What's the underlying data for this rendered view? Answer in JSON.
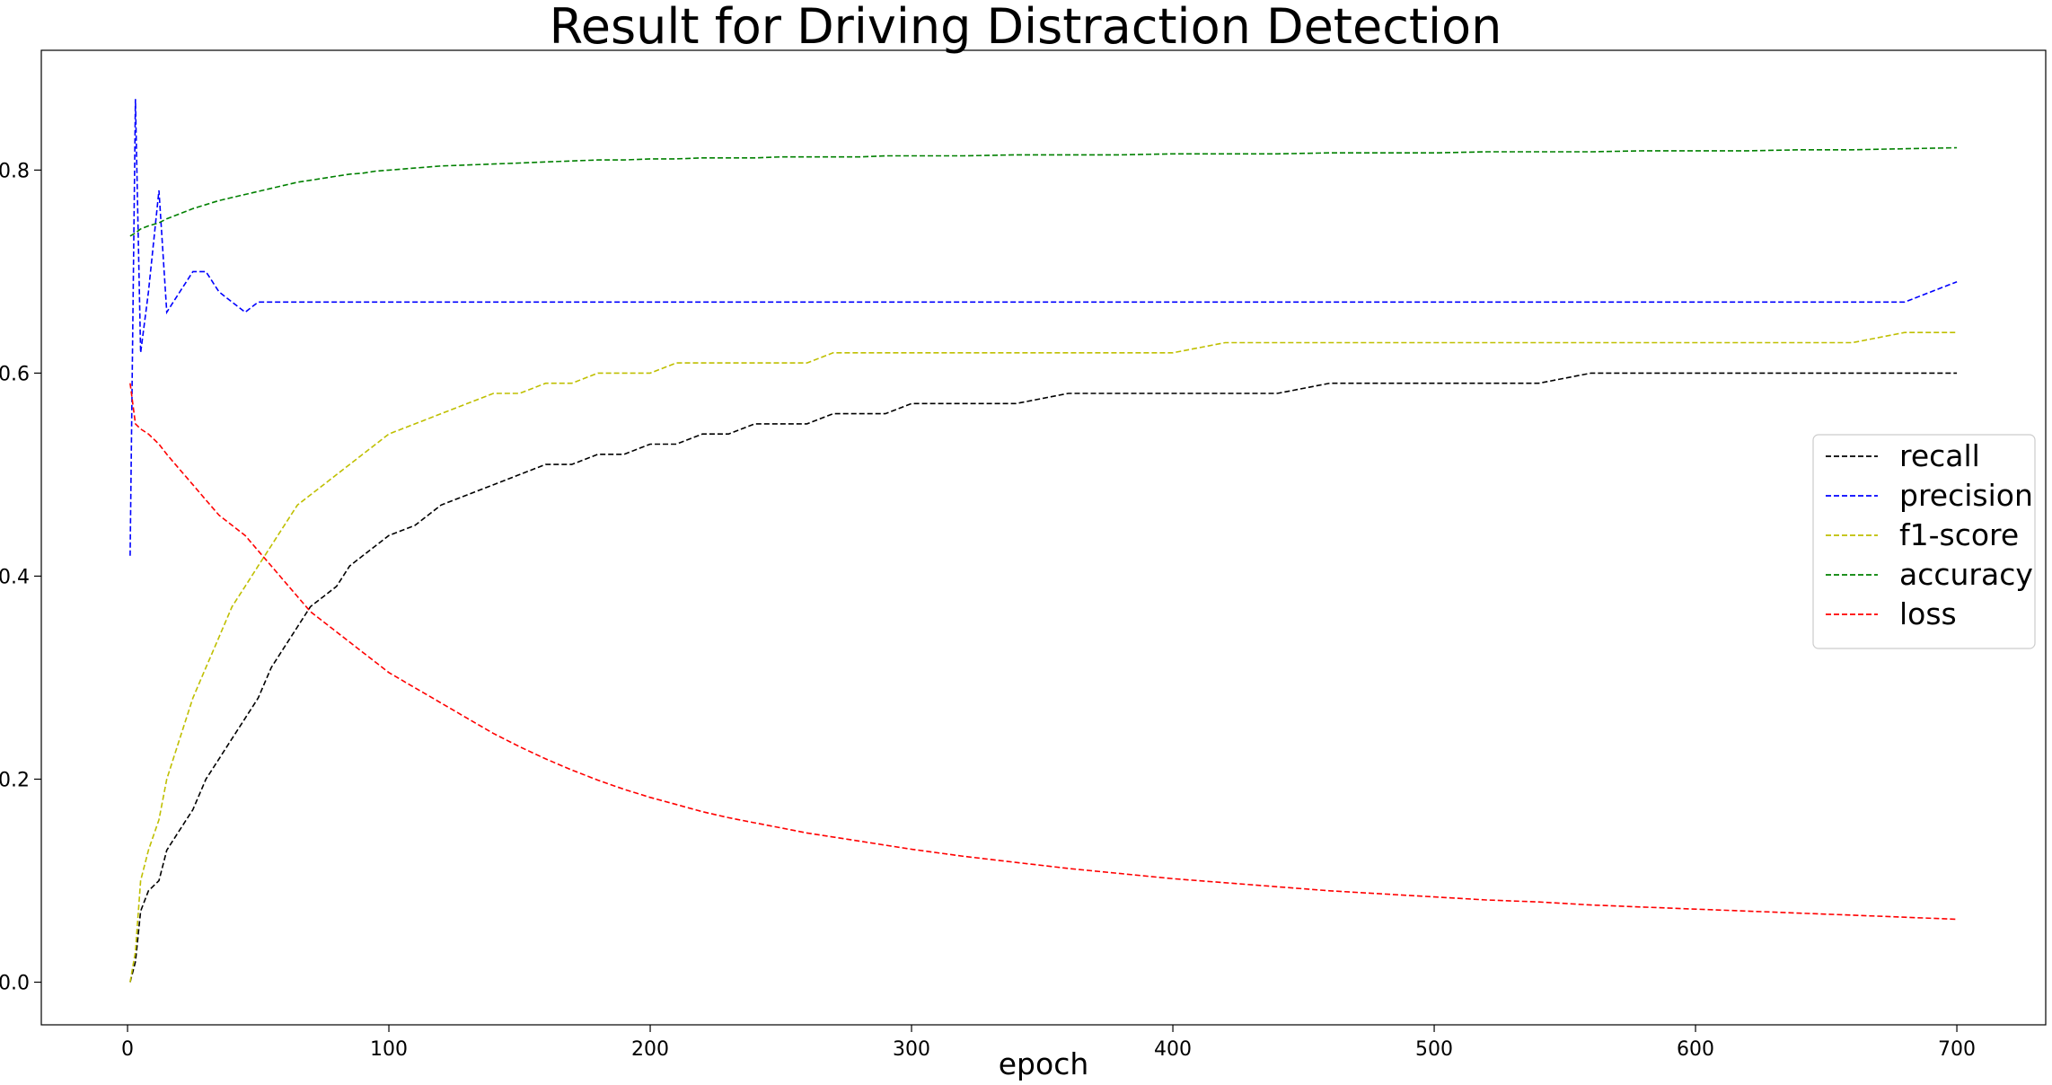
{
  "chart_data": {
    "type": "line",
    "title": "Result for Driving Distraction Detection",
    "xlabel": "epoch",
    "ylabel": "",
    "xlim": [
      -33,
      734
    ],
    "ylim": [
      -0.042,
      0.918
    ],
    "grid": false,
    "legend_position": "center-right",
    "x_ticks": [
      0,
      100,
      200,
      300,
      400,
      500,
      600,
      700
    ],
    "x_tick_labels": [
      "0",
      "100",
      "200",
      "300",
      "400",
      "500",
      "600",
      "700"
    ],
    "y_ticks": [
      0.0,
      0.2,
      0.4,
      0.6,
      0.8
    ],
    "y_tick_labels": [
      "0.0",
      "0.2",
      "0.4",
      "0.6",
      "0.8"
    ],
    "x": [
      1,
      3,
      5,
      8,
      12,
      15,
      20,
      25,
      30,
      35,
      40,
      45,
      50,
      55,
      60,
      65,
      70,
      75,
      80,
      85,
      90,
      95,
      100,
      110,
      120,
      130,
      140,
      150,
      160,
      170,
      180,
      190,
      200,
      210,
      220,
      230,
      240,
      250,
      260,
      270,
      280,
      290,
      300,
      320,
      340,
      360,
      380,
      400,
      420,
      440,
      460,
      480,
      500,
      520,
      540,
      560,
      580,
      600,
      620,
      640,
      660,
      680,
      700
    ],
    "series": [
      {
        "name": "recall",
        "color": "#000000",
        "values": [
          0.0,
          0.02,
          0.07,
          0.09,
          0.1,
          0.13,
          0.15,
          0.17,
          0.2,
          0.22,
          0.24,
          0.26,
          0.28,
          0.31,
          0.33,
          0.35,
          0.37,
          0.38,
          0.39,
          0.41,
          0.42,
          0.43,
          0.44,
          0.45,
          0.47,
          0.48,
          0.49,
          0.5,
          0.51,
          0.51,
          0.52,
          0.52,
          0.53,
          0.53,
          0.54,
          0.54,
          0.55,
          0.55,
          0.55,
          0.56,
          0.56,
          0.56,
          0.57,
          0.57,
          0.57,
          0.58,
          0.58,
          0.58,
          0.58,
          0.58,
          0.59,
          0.59,
          0.59,
          0.59,
          0.59,
          0.6,
          0.6,
          0.6,
          0.6,
          0.6,
          0.6,
          0.6,
          0.6
        ]
      },
      {
        "name": "precision",
        "color": "#0000ff",
        "values": [
          0.42,
          0.87,
          0.62,
          0.68,
          0.78,
          0.66,
          0.68,
          0.7,
          0.7,
          0.68,
          0.67,
          0.66,
          0.67,
          0.67,
          0.67,
          0.67,
          0.67,
          0.67,
          0.67,
          0.67,
          0.67,
          0.67,
          0.67,
          0.67,
          0.67,
          0.67,
          0.67,
          0.67,
          0.67,
          0.67,
          0.67,
          0.67,
          0.67,
          0.67,
          0.67,
          0.67,
          0.67,
          0.67,
          0.67,
          0.67,
          0.67,
          0.67,
          0.67,
          0.67,
          0.67,
          0.67,
          0.67,
          0.67,
          0.67,
          0.67,
          0.67,
          0.67,
          0.67,
          0.67,
          0.67,
          0.67,
          0.67,
          0.67,
          0.67,
          0.67,
          0.67,
          0.67,
          0.69
        ]
      },
      {
        "name": "f1-score",
        "color": "#bfbf00",
        "values": [
          0.0,
          0.03,
          0.1,
          0.13,
          0.16,
          0.2,
          0.24,
          0.28,
          0.31,
          0.34,
          0.37,
          0.39,
          0.41,
          0.43,
          0.45,
          0.47,
          0.48,
          0.49,
          0.5,
          0.51,
          0.52,
          0.53,
          0.54,
          0.55,
          0.56,
          0.57,
          0.58,
          0.58,
          0.59,
          0.59,
          0.6,
          0.6,
          0.6,
          0.61,
          0.61,
          0.61,
          0.61,
          0.61,
          0.61,
          0.62,
          0.62,
          0.62,
          0.62,
          0.62,
          0.62,
          0.62,
          0.62,
          0.62,
          0.63,
          0.63,
          0.63,
          0.63,
          0.63,
          0.63,
          0.63,
          0.63,
          0.63,
          0.63,
          0.63,
          0.63,
          0.63,
          0.64,
          0.64
        ]
      },
      {
        "name": "accuracy",
        "color": "#008000",
        "values": [
          0.735,
          0.738,
          0.742,
          0.745,
          0.748,
          0.752,
          0.757,
          0.762,
          0.766,
          0.77,
          0.773,
          0.776,
          0.779,
          0.782,
          0.785,
          0.788,
          0.79,
          0.792,
          0.794,
          0.796,
          0.797,
          0.799,
          0.8,
          0.802,
          0.804,
          0.805,
          0.806,
          0.807,
          0.808,
          0.809,
          0.81,
          0.81,
          0.811,
          0.811,
          0.812,
          0.812,
          0.812,
          0.813,
          0.813,
          0.813,
          0.813,
          0.814,
          0.814,
          0.814,
          0.815,
          0.815,
          0.815,
          0.816,
          0.816,
          0.816,
          0.817,
          0.817,
          0.817,
          0.818,
          0.818,
          0.818,
          0.819,
          0.819,
          0.819,
          0.82,
          0.82,
          0.821,
          0.822
        ]
      },
      {
        "name": "loss",
        "color": "#ff0000",
        "values": [
          0.59,
          0.55,
          0.545,
          0.54,
          0.53,
          0.52,
          0.505,
          0.49,
          0.475,
          0.46,
          0.45,
          0.44,
          0.425,
          0.41,
          0.395,
          0.38,
          0.365,
          0.355,
          0.345,
          0.335,
          0.325,
          0.315,
          0.305,
          0.29,
          0.275,
          0.26,
          0.245,
          0.232,
          0.22,
          0.209,
          0.199,
          0.19,
          0.182,
          0.175,
          0.168,
          0.162,
          0.157,
          0.152,
          0.147,
          0.143,
          0.139,
          0.135,
          0.131,
          0.124,
          0.118,
          0.112,
          0.107,
          0.102,
          0.098,
          0.094,
          0.09,
          0.087,
          0.084,
          0.081,
          0.079,
          0.076,
          0.074,
          0.072,
          0.07,
          0.068,
          0.066,
          0.064,
          0.062
        ]
      }
    ]
  }
}
